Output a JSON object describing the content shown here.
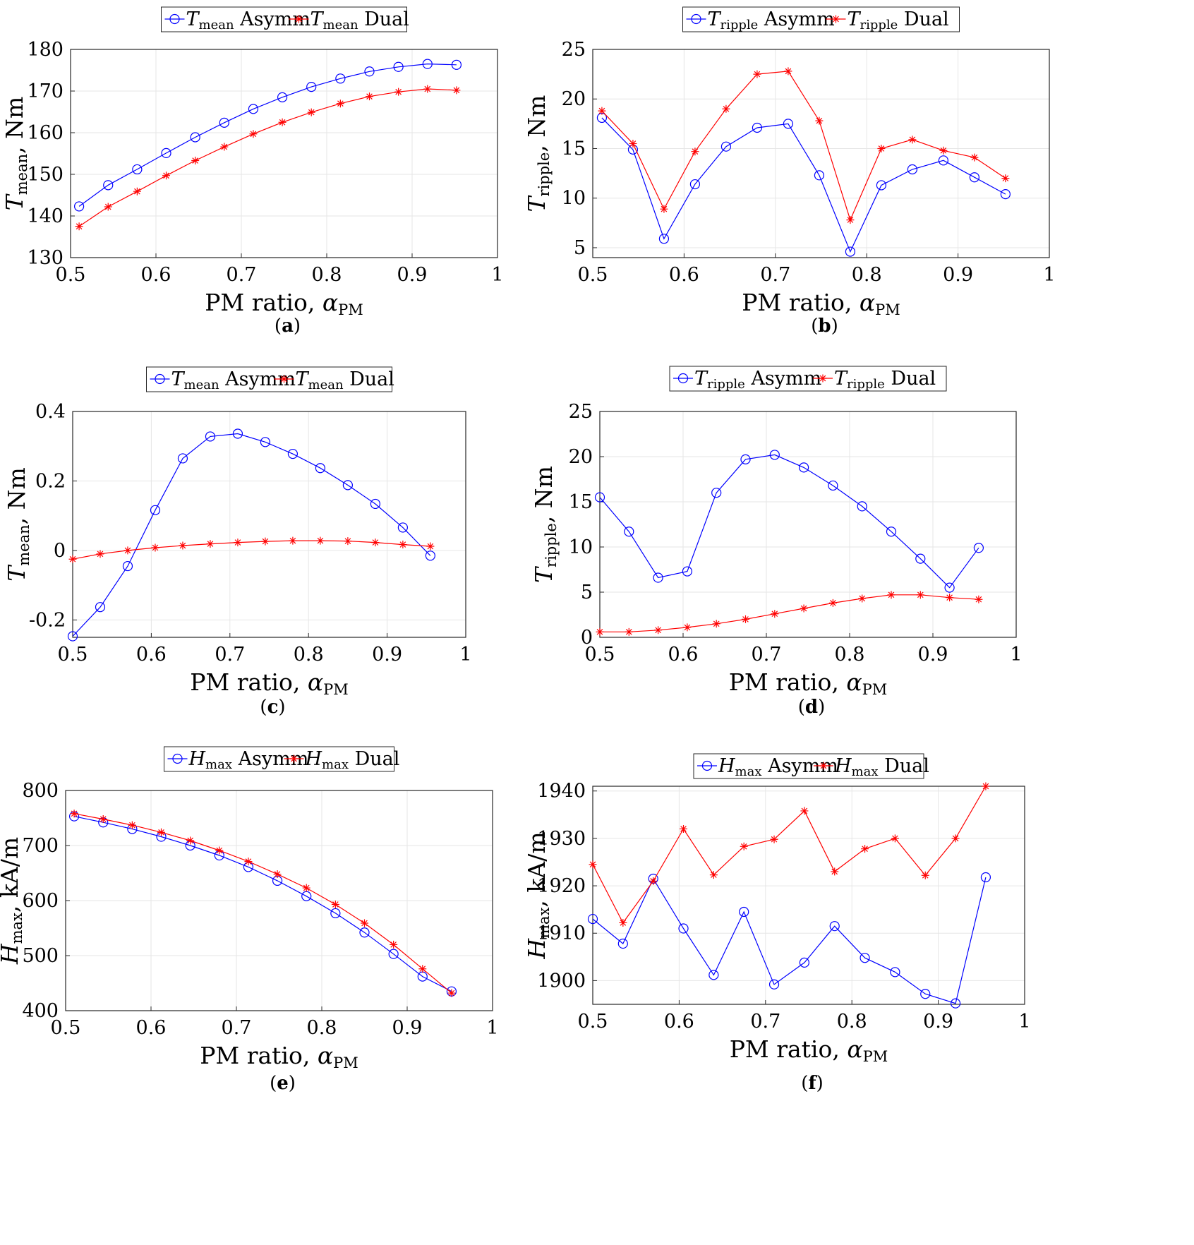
{
  "chart_data": [
    {
      "id": "a",
      "caption": "a",
      "type": "line",
      "xlabel": "PM ratio,",
      "xsym": "α",
      "xsub": "PM",
      "ylabel": ", Nm",
      "ysym": "T",
      "ysub": "mean",
      "xlim": [
        0.5,
        1
      ],
      "ylim": [
        130,
        180
      ],
      "xticks": [
        "0.5",
        "0.6",
        "0.7",
        "0.8",
        "0.9",
        "1"
      ],
      "yticks": [
        "130",
        "140",
        "150",
        "160",
        "170",
        "180"
      ],
      "x": [
        0.51,
        0.544,
        0.578,
        0.612,
        0.646,
        0.68,
        0.714,
        0.748,
        0.782,
        0.816,
        0.85,
        0.884,
        0.918,
        0.952
      ],
      "series": [
        {
          "name": "Asymm",
          "sym": "T",
          "sub": "mean",
          "color": "#0000ff",
          "marker": "circle",
          "values": [
            142.3,
            147.4,
            151.2,
            155.1,
            158.9,
            162.4,
            165.7,
            168.5,
            171.0,
            173.0,
            174.7,
            175.8,
            176.5,
            176.3
          ]
        },
        {
          "name": "Dual",
          "sym": "T",
          "sub": "mean",
          "color": "#ff0000",
          "marker": "star",
          "values": [
            137.5,
            142.2,
            145.9,
            149.7,
            153.3,
            156.6,
            159.7,
            162.5,
            164.9,
            167.0,
            168.7,
            169.8,
            170.5,
            170.2
          ]
        }
      ]
    },
    {
      "id": "b",
      "caption": "b",
      "type": "line",
      "xlabel": "PM ratio,",
      "xsym": "α",
      "xsub": "PM",
      "ylabel": ", Nm",
      "ysym": "T",
      "ysub": "ripple",
      "xlim": [
        0.5,
        1
      ],
      "ylim": [
        4,
        25
      ],
      "xticks": [
        "0.5",
        "0.6",
        "0.7",
        "0.8",
        "0.9",
        "1"
      ],
      "yticks": [
        "5",
        "10",
        "15",
        "20",
        "25"
      ],
      "x": [
        0.51,
        0.544,
        0.578,
        0.612,
        0.646,
        0.68,
        0.714,
        0.748,
        0.782,
        0.816,
        0.85,
        0.884,
        0.918,
        0.952
      ],
      "series": [
        {
          "name": "Asymm",
          "sym": "T",
          "sub": "ripple",
          "color": "#0000ff",
          "marker": "circle",
          "values": [
            18.1,
            14.9,
            5.9,
            11.4,
            15.2,
            17.1,
            17.5,
            12.3,
            4.6,
            11.3,
            12.9,
            13.8,
            12.1,
            10.4
          ]
        },
        {
          "name": "Dual",
          "sym": "T",
          "sub": "ripple",
          "color": "#ff0000",
          "marker": "star",
          "values": [
            18.8,
            15.5,
            8.9,
            14.7,
            19.0,
            22.5,
            22.8,
            17.8,
            7.8,
            15.0,
            15.9,
            14.8,
            14.1,
            12.0
          ]
        }
      ]
    },
    {
      "id": "c",
      "caption": "c",
      "type": "line",
      "xlabel": "PM ratio,",
      "xsym": "α",
      "xsub": "PM",
      "ylabel": ", Nm",
      "ysym": "T",
      "ysub": "mean",
      "xlim": [
        0.5,
        1
      ],
      "ylim": [
        -0.25,
        0.4
      ],
      "xticks": [
        "0.5",
        "0.6",
        "0.7",
        "0.8",
        "0.9",
        "1"
      ],
      "yticks": [
        "-0.2",
        "0",
        "0.2",
        "0.4"
      ],
      "x": [
        0.5,
        0.535,
        0.57,
        0.605,
        0.64,
        0.675,
        0.71,
        0.745,
        0.78,
        0.815,
        0.85,
        0.885,
        0.92,
        0.955
      ],
      "series": [
        {
          "name": "Asymm",
          "sym": "T",
          "sub": "mean",
          "color": "#0000ff",
          "marker": "circle",
          "values": [
            -0.247,
            -0.163,
            -0.045,
            0.116,
            0.265,
            0.328,
            0.336,
            0.312,
            0.278,
            0.237,
            0.188,
            0.134,
            0.066,
            -0.015
          ]
        },
        {
          "name": "Dual",
          "sym": "T",
          "sub": "mean",
          "color": "#ff0000",
          "marker": "star",
          "values": [
            -0.025,
            -0.01,
            0.0,
            0.008,
            0.014,
            0.019,
            0.023,
            0.026,
            0.028,
            0.028,
            0.027,
            0.023,
            0.017,
            0.012
          ]
        }
      ]
    },
    {
      "id": "d",
      "caption": "d",
      "type": "line",
      "xlabel": "PM ratio,",
      "xsym": "α",
      "xsub": "PM",
      "ylabel": ", Nm",
      "ysym": "T",
      "ysub": "ripple",
      "xlim": [
        0.5,
        1
      ],
      "ylim": [
        0,
        25
      ],
      "xticks": [
        "0.5",
        "0.6",
        "0.7",
        "0.8",
        "0.9",
        "1"
      ],
      "yticks": [
        "0",
        "5",
        "10",
        "15",
        "20",
        "25"
      ],
      "x": [
        0.5,
        0.535,
        0.57,
        0.605,
        0.64,
        0.675,
        0.71,
        0.745,
        0.78,
        0.815,
        0.85,
        0.885,
        0.92,
        0.955
      ],
      "series": [
        {
          "name": "Asymm",
          "sym": "T",
          "sub": "ripple",
          "color": "#0000ff",
          "marker": "circle",
          "values": [
            15.5,
            11.7,
            6.6,
            7.3,
            16.0,
            19.7,
            20.2,
            18.8,
            16.8,
            14.5,
            11.7,
            8.7,
            5.5,
            9.9
          ]
        },
        {
          "name": "Dual",
          "sym": "T",
          "sub": "ripple",
          "color": "#ff0000",
          "marker": "star",
          "values": [
            0.6,
            0.6,
            0.8,
            1.1,
            1.5,
            2.0,
            2.6,
            3.2,
            3.8,
            4.3,
            4.7,
            4.7,
            4.4,
            4.2
          ]
        }
      ]
    },
    {
      "id": "e",
      "caption": "e",
      "type": "line",
      "xlabel": "PM ratio,",
      "xsym": "α",
      "xsub": "PM",
      "ylabel": ", kA/m",
      "ysym": "H",
      "ysub": "max",
      "xlim": [
        0.5,
        1
      ],
      "ylim": [
        400,
        800
      ],
      "xticks": [
        "0.5",
        "0.6",
        "0.7",
        "0.8",
        "0.9",
        "1"
      ],
      "yticks": [
        "400",
        "500",
        "600",
        "700",
        "800"
      ],
      "x": [
        0.51,
        0.544,
        0.578,
        0.612,
        0.646,
        0.68,
        0.714,
        0.748,
        0.782,
        0.816,
        0.85,
        0.884,
        0.918,
        0.952
      ],
      "series": [
        {
          "name": "Asymm",
          "sym": "H",
          "sub": "max",
          "color": "#0000ff",
          "marker": "circle",
          "values": [
            753,
            742,
            730,
            716,
            700,
            682,
            661,
            636,
            608,
            577,
            542,
            503,
            462,
            435
          ]
        },
        {
          "name": "Dual",
          "sym": "H",
          "sub": "max",
          "color": "#ff0000",
          "marker": "star",
          "values": [
            758,
            748,
            737,
            724,
            709,
            691,
            671,
            648,
            623,
            593,
            559,
            520,
            476,
            432
          ]
        }
      ]
    },
    {
      "id": "f",
      "caption": "f",
      "type": "line",
      "xlabel": "PM ratio,",
      "xsym": "α",
      "xsub": "PM",
      "ylabel": ", kA/m",
      "ysym": "H",
      "ysub": "max",
      "xlim": [
        0.5,
        1
      ],
      "ylim": [
        1895,
        1941
      ],
      "xticks": [
        "0.5",
        "0.6",
        "0.7",
        "0.8",
        "0.9",
        "1"
      ],
      "yticks": [
        "1900",
        "1910",
        "1920",
        "1930",
        "1940"
      ],
      "x": [
        0.5,
        0.535,
        0.57,
        0.605,
        0.64,
        0.675,
        0.71,
        0.745,
        0.78,
        0.815,
        0.85,
        0.885,
        0.92,
        0.955
      ],
      "series": [
        {
          "name": "Asymm",
          "sym": "H",
          "sub": "max",
          "color": "#0000ff",
          "marker": "circle",
          "values": [
            1913,
            1907.8,
            1921.5,
            1911,
            1901.2,
            1914.5,
            1899.2,
            1903.8,
            1911.5,
            1904.8,
            1901.8,
            1897.2,
            1895.2,
            1921.8
          ]
        },
        {
          "name": "Dual",
          "sym": "H",
          "sub": "max",
          "color": "#ff0000",
          "marker": "star",
          "values": [
            1924.5,
            1912.2,
            1921,
            1932,
            1922.3,
            1928.3,
            1929.8,
            1935.8,
            1923,
            1927.8,
            1930,
            1922.2,
            1930,
            1941
          ]
        }
      ]
    }
  ]
}
